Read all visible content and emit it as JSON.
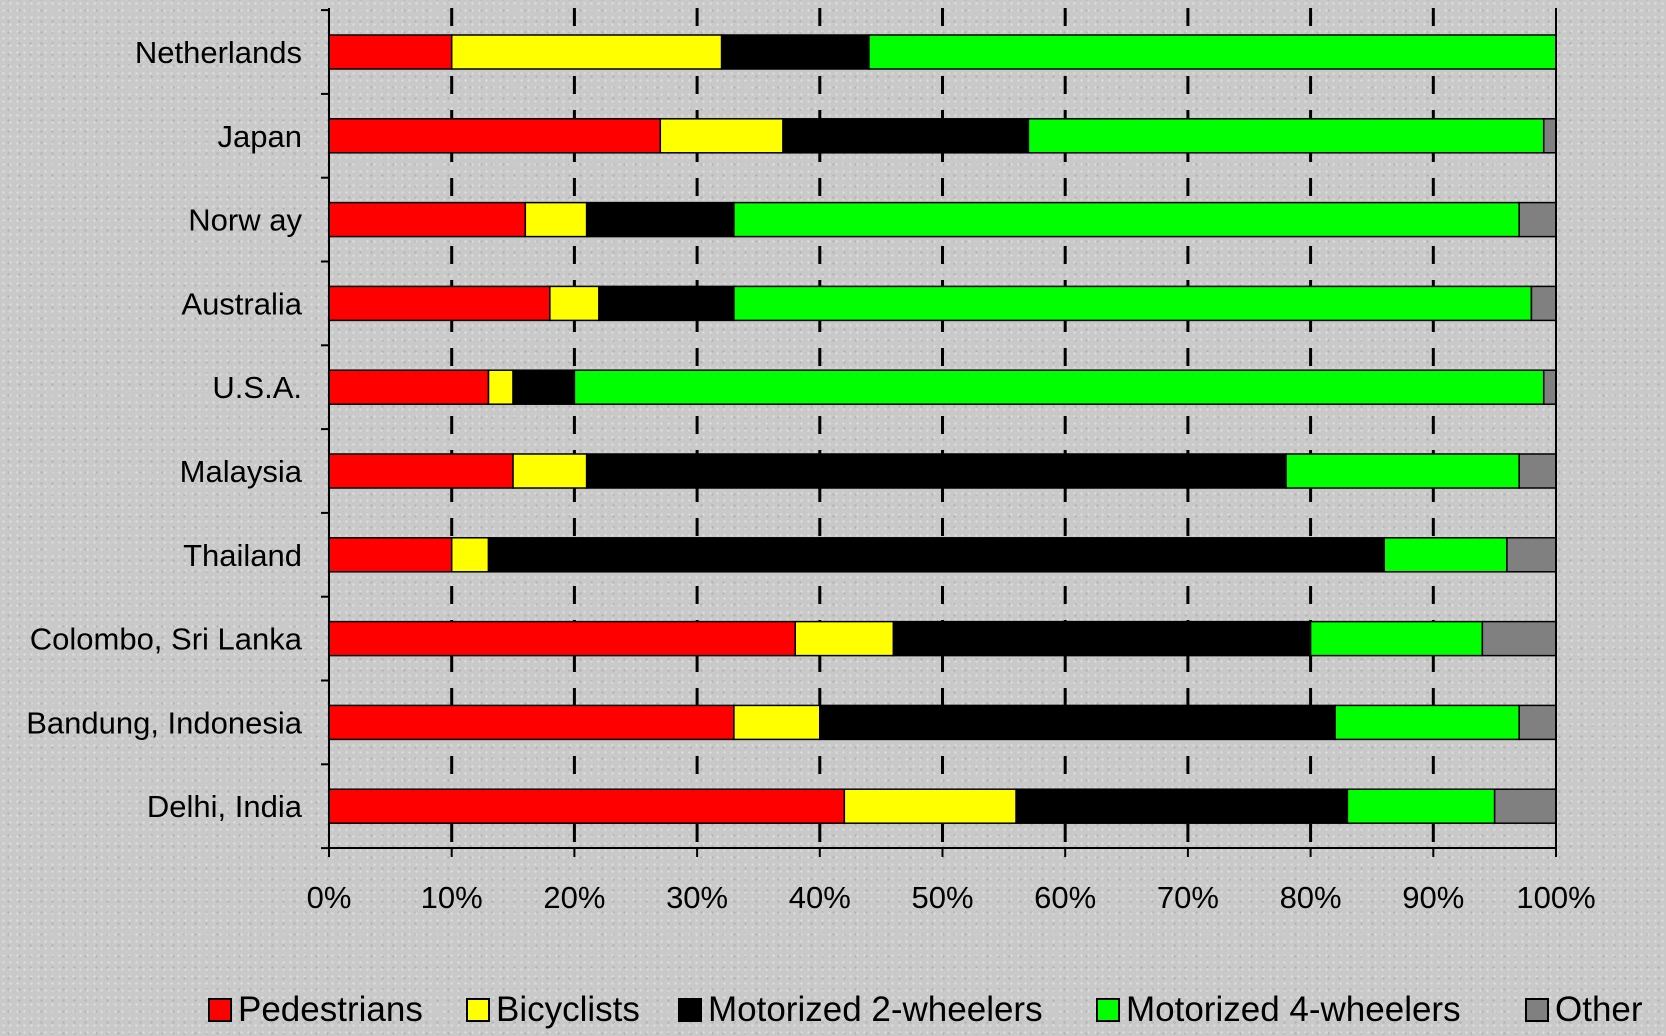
{
  "chart_data": {
    "type": "bar",
    "orientation": "horizontal",
    "stacked": "percent",
    "categories": [
      "Netherlands",
      "Japan",
      "Norw ay",
      "Australia",
      "U.S.A.",
      "Malaysia",
      "Thailand",
      "Colombo, Sri Lanka",
      "Bandung, Indonesia",
      "Delhi, India"
    ],
    "series": [
      {
        "name": "Pedestrians",
        "color": "#ff0000",
        "values": [
          10,
          27,
          16,
          18,
          13,
          15,
          10,
          38,
          33,
          42
        ]
      },
      {
        "name": "Bicyclists",
        "color": "#ffff00",
        "values": [
          22,
          10,
          5,
          4,
          2,
          6,
          3,
          8,
          7,
          14
        ]
      },
      {
        "name": "Motorized 2-wheelers",
        "color": "#000000",
        "values": [
          12,
          20,
          12,
          11,
          5,
          57,
          73,
          34,
          42,
          27
        ]
      },
      {
        "name": "Motorized 4-wheelers",
        "color": "#00ff00",
        "values": [
          56,
          42,
          64,
          65,
          79,
          19,
          10,
          14,
          15,
          12
        ]
      },
      {
        "name": "Other",
        "color": "#808080",
        "values": [
          0,
          1,
          3,
          2,
          1,
          3,
          4,
          6,
          3,
          5
        ]
      }
    ],
    "xlim": [
      0,
      100
    ],
    "xticks": [
      "0%",
      "10%",
      "20%",
      "30%",
      "40%",
      "50%",
      "60%",
      "70%",
      "80%",
      "90%",
      "100%"
    ],
    "grid": "vertical dashed",
    "legend_position": "bottom"
  }
}
